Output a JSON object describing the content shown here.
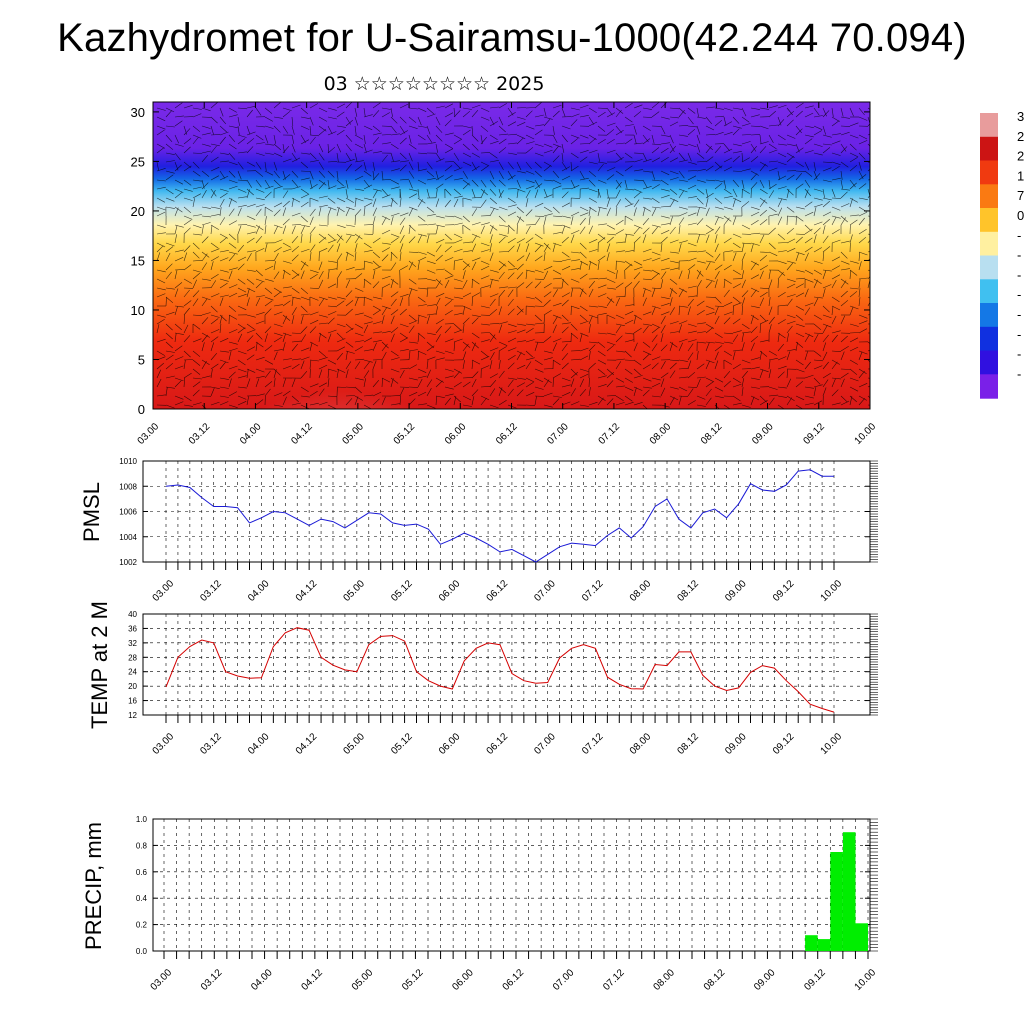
{
  "header": {
    "title": "Kazhydromet for U-Sairamsu-1000(42.244 70.094)",
    "subtitle": "03 ☆☆☆☆☆☆☆☆ 2025"
  },
  "colors": {
    "pmsl_line": "#1a1ad6",
    "temp_line": "#d40000",
    "precip_bar": "#00ee00"
  },
  "chart_data": [
    {
      "type": "heatmap",
      "title": "",
      "xlabel": "",
      "ylabel": "",
      "x_tick_labels": [
        "03.00",
        "03.12",
        "04.00",
        "04.12",
        "05.00",
        "05.12",
        "06.00",
        "06.12",
        "07.00",
        "07.12",
        "08.00",
        "08.12",
        "09.00",
        "09.12",
        "10.00"
      ],
      "ylim": [
        0,
        31
      ],
      "yticks": [
        0,
        5,
        10,
        15,
        20,
        25,
        30
      ],
      "colorbar_labels": [
        "3",
        "2",
        "2",
        "1",
        "7",
        "0",
        "-",
        "-",
        "-",
        "-",
        "-",
        "-",
        "-",
        "-"
      ],
      "colorbar_colors": [
        "#e89c9c",
        "#cc1414",
        "#f03a10",
        "#fa7a12",
        "#ffc42a",
        "#fff0a0",
        "#b8dff0",
        "#40c0f0",
        "#1478e6",
        "#1030e0",
        "#3010e0",
        "#7a20e8"
      ],
      "note_overlay": "wind barbs"
    },
    {
      "type": "line",
      "ylabel": "PMSL",
      "ylim": [
        1002,
        1010
      ],
      "yticks": [
        1002,
        1004,
        1006,
        1008,
        1010
      ],
      "x_tick_labels": [
        "03.00",
        "03.12",
        "04.00",
        "04.12",
        "05.00",
        "05.12",
        "06.00",
        "06.12",
        "07.00",
        "07.12",
        "08.00",
        "08.12",
        "09.00",
        "09.12",
        "10.00"
      ],
      "series": [
        {
          "values": [
            1008.0,
            1008.1,
            1007.9,
            1007.1,
            1006.4,
            1006.4,
            1006.3,
            1005.1,
            1005.5,
            1006.0,
            1005.9,
            1005.4,
            1004.9,
            1005.4,
            1005.2,
            1004.7,
            1005.3,
            1005.9,
            1005.8,
            1005.1,
            1004.9,
            1005.0,
            1004.6,
            1003.4,
            1003.8,
            1004.3,
            1003.9,
            1003.4,
            1002.8,
            1003.0,
            1002.5,
            1002.0,
            1002.6,
            1003.2,
            1003.5,
            1003.4,
            1003.3,
            1004.1,
            1004.7,
            1003.9,
            1004.8,
            1006.4,
            1007.0,
            1005.4,
            1004.7,
            1005.9,
            1006.2,
            1005.5,
            1006.6,
            1008.2,
            1007.7,
            1007.6,
            1008.1,
            1009.2,
            1009.3,
            1008.8,
            1008.8
          ]
        }
      ]
    },
    {
      "type": "line",
      "ylabel": "TEMP at 2 M",
      "ylim": [
        12,
        40
      ],
      "yticks": [
        12,
        16,
        20,
        24,
        28,
        32,
        36,
        40
      ],
      "x_tick_labels": [
        "03.00",
        "03.12",
        "04.00",
        "04.12",
        "05.00",
        "05.12",
        "06.00",
        "06.12",
        "07.00",
        "07.12",
        "08.00",
        "08.12",
        "09.00",
        "09.12",
        "10.00"
      ],
      "series": [
        {
          "values": [
            19.8,
            28.0,
            31.0,
            32.8,
            32.0,
            24.0,
            22.8,
            22.2,
            22.3,
            31.0,
            34.8,
            36.2,
            35.5,
            28.0,
            25.8,
            24.5,
            24.0,
            31.5,
            33.8,
            34.0,
            32.5,
            24.0,
            21.5,
            20.0,
            19.2,
            27.0,
            30.5,
            32.0,
            31.5,
            23.5,
            21.5,
            20.8,
            21.0,
            27.8,
            30.5,
            31.5,
            30.5,
            22.5,
            20.5,
            19.3,
            19.2,
            26.0,
            25.7,
            29.5,
            29.5,
            23.0,
            20.0,
            18.8,
            19.5,
            23.8,
            25.7,
            25.0,
            21.5,
            18.5,
            15.0,
            13.8,
            12.8
          ]
        }
      ]
    },
    {
      "type": "bar",
      "ylabel": "PRECIP, mm",
      "ylim": [
        0,
        1.0
      ],
      "yticks": [
        0.0,
        0.2,
        0.4,
        0.6,
        0.8,
        1.0
      ],
      "x_tick_labels": [
        "03.00",
        "03.12",
        "04.00",
        "04.12",
        "05.00",
        "05.12",
        "06.00",
        "06.12",
        "07.00",
        "07.12",
        "08.00",
        "08.12",
        "09.00",
        "09.12",
        "10.00"
      ],
      "bars": [
        {
          "start_hour": 153,
          "end_hour": 156,
          "value": 0.12
        },
        {
          "start_hour": 156,
          "end_hour": 159,
          "value": 0.09
        },
        {
          "start_hour": 159,
          "end_hour": 162,
          "value": 0.75
        },
        {
          "start_hour": 162,
          "end_hour": 165,
          "value": 0.9
        },
        {
          "start_hour": 165,
          "end_hour": 168,
          "value": 0.21
        }
      ]
    }
  ]
}
